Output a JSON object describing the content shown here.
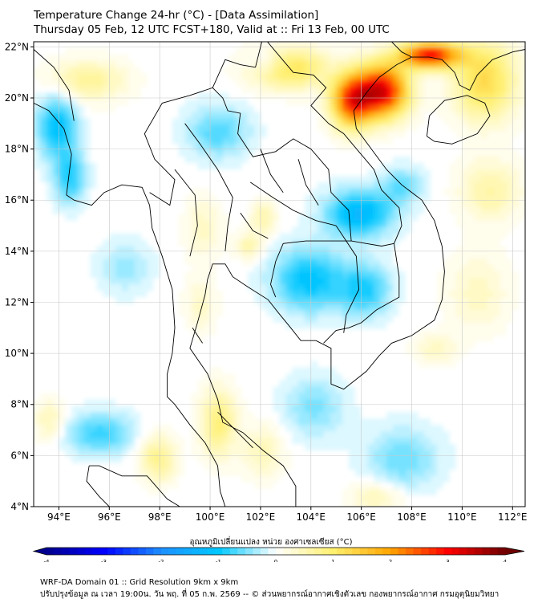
{
  "header": {
    "title_line1": "Temperature Change 24-hr (°C) - [Data Assimilation]",
    "title_line2": "Thursday 05 Feb, 12 UTC FCST+180, Valid at :: Fri 13 Feb, 00 UTC"
  },
  "map": {
    "lon_range": [
      93.0,
      112.5
    ],
    "lat_range": [
      4.0,
      22.2
    ],
    "lat_ticks": [
      {
        "value": 4,
        "label": "4°N"
      },
      {
        "value": 6,
        "label": "6°N"
      },
      {
        "value": 8,
        "label": "8°N"
      },
      {
        "value": 10,
        "label": "10°N"
      },
      {
        "value": 12,
        "label": "12°N"
      },
      {
        "value": 14,
        "label": "14°N"
      },
      {
        "value": 16,
        "label": "16°N"
      },
      {
        "value": 18,
        "label": "18°N"
      },
      {
        "value": 20,
        "label": "20°N"
      },
      {
        "value": 22,
        "label": "22°N"
      }
    ],
    "lon_ticks": [
      {
        "value": 94,
        "label": "94°E"
      },
      {
        "value": 96,
        "label": "96°E"
      },
      {
        "value": 98,
        "label": "98°E"
      },
      {
        "value": 100,
        "label": "100°E"
      },
      {
        "value": 102,
        "label": "102°E"
      },
      {
        "value": 104,
        "label": "104°E"
      },
      {
        "value": 106,
        "label": "106°E"
      },
      {
        "value": 108,
        "label": "108°E"
      },
      {
        "value": 110,
        "label": "110°E"
      },
      {
        "value": 112,
        "label": "112°E"
      }
    ],
    "grid": true,
    "field_features": [
      {
        "lon": 106.7,
        "lat": 20.4,
        "value": 3.2,
        "sx": 1.0,
        "sy": 1.0
      },
      {
        "lon": 105.5,
        "lat": 20.0,
        "value": 2.6,
        "sx": 0.8,
        "sy": 1.0
      },
      {
        "lon": 108.6,
        "lat": 21.8,
        "value": 3.0,
        "sx": 1.2,
        "sy": 0.5
      },
      {
        "lon": 103.0,
        "lat": 21.3,
        "value": 1.2,
        "sx": 1.5,
        "sy": 0.8
      },
      {
        "lon": 110.8,
        "lat": 20.8,
        "value": 1.3,
        "sx": 1.2,
        "sy": 1.5
      },
      {
        "lon": 95.0,
        "lat": 20.8,
        "value": 0.7,
        "sx": 1.5,
        "sy": 0.8
      },
      {
        "lon": 111.0,
        "lat": 16.5,
        "value": 0.6,
        "sx": 1.2,
        "sy": 1.2
      },
      {
        "lon": 93.8,
        "lat": 19.0,
        "value": -1.1,
        "sx": 0.8,
        "sy": 1.2
      },
      {
        "lon": 94.3,
        "lat": 17.0,
        "value": -0.9,
        "sx": 0.6,
        "sy": 1.0
      },
      {
        "lon": 100.2,
        "lat": 18.8,
        "value": -0.7,
        "sx": 1.2,
        "sy": 1.0
      },
      {
        "lon": 102.2,
        "lat": 21.5,
        "value": -0.5,
        "sx": 0.8,
        "sy": 0.5
      },
      {
        "lon": 105.8,
        "lat": 15.6,
        "value": -1.3,
        "sx": 1.3,
        "sy": 0.9
      },
      {
        "lon": 103.8,
        "lat": 13.0,
        "value": -1.1,
        "sx": 1.4,
        "sy": 1.2
      },
      {
        "lon": 106.0,
        "lat": 12.6,
        "value": -0.9,
        "sx": 1.0,
        "sy": 1.0
      },
      {
        "lon": 107.5,
        "lat": 16.7,
        "value": -0.6,
        "sx": 0.8,
        "sy": 0.7
      },
      {
        "lon": 102.0,
        "lat": 15.4,
        "value": 0.6,
        "sx": 0.5,
        "sy": 0.6
      },
      {
        "lon": 101.4,
        "lat": 14.3,
        "value": 0.6,
        "sx": 0.5,
        "sy": 0.5
      },
      {
        "lon": 99.6,
        "lat": 15.0,
        "value": 0.4,
        "sx": 0.7,
        "sy": 1.2
      },
      {
        "lon": 99.5,
        "lat": 12.0,
        "value": 0.4,
        "sx": 0.6,
        "sy": 1.0
      },
      {
        "lon": 100.2,
        "lat": 7.4,
        "value": 0.9,
        "sx": 0.7,
        "sy": 1.3
      },
      {
        "lon": 102.0,
        "lat": 6.3,
        "value": 0.5,
        "sx": 0.8,
        "sy": 1.0
      },
      {
        "lon": 97.8,
        "lat": 6.0,
        "value": 0.8,
        "sx": 0.7,
        "sy": 0.9
      },
      {
        "lon": 95.5,
        "lat": 7.0,
        "value": -0.8,
        "sx": 1.3,
        "sy": 0.8
      },
      {
        "lon": 104.0,
        "lat": 8.0,
        "value": -0.5,
        "sx": 1.2,
        "sy": 1.2
      },
      {
        "lon": 107.5,
        "lat": 6.0,
        "value": -0.6,
        "sx": 1.4,
        "sy": 1.2
      },
      {
        "lon": 106.5,
        "lat": 4.5,
        "value": 0.5,
        "sx": 1.0,
        "sy": 0.6
      },
      {
        "lon": 93.5,
        "lat": 7.5,
        "value": 0.5,
        "sx": 0.6,
        "sy": 0.8
      },
      {
        "lon": 110.5,
        "lat": 12.5,
        "value": 0.4,
        "sx": 1.2,
        "sy": 1.5
      },
      {
        "lon": 96.5,
        "lat": 13.5,
        "value": -0.4,
        "sx": 1.0,
        "sy": 1.0
      },
      {
        "lon": 108.8,
        "lat": 10.3,
        "value": 0.4,
        "sx": 0.8,
        "sy": 0.6
      }
    ]
  },
  "colorbar": {
    "title": "อุณหภูมิเปลี่ยนแปลง หน่วย องศาเซลเซียส (°C)",
    "vmin": -4,
    "vmax": 4,
    "levels": 60,
    "ticks": [
      "-4",
      "-3",
      "-2",
      "-1",
      "0",
      "1",
      "2",
      "3",
      "4"
    ],
    "colors": [
      "#00008c",
      "#0000ff",
      "#1e90ff",
      "#00c8ff",
      "#ffffff",
      "#fff06e",
      "#ffa500",
      "#ff0000",
      "#6e0000"
    ]
  },
  "footer": {
    "line1": "WRF-DA Domain 01 :: Grid Resolution 9km x 9km",
    "line2": "ปรับปรุงข้อมูล ณ เวลา 19:00น. วัน พฤ. ที่ 05 ก.พ. 2569 -- © ส่วนพยากรณ์อากาศเชิงตัวเลข กองพยากรณ์อากาศ กรมอุตุนิยมวิทยา"
  }
}
